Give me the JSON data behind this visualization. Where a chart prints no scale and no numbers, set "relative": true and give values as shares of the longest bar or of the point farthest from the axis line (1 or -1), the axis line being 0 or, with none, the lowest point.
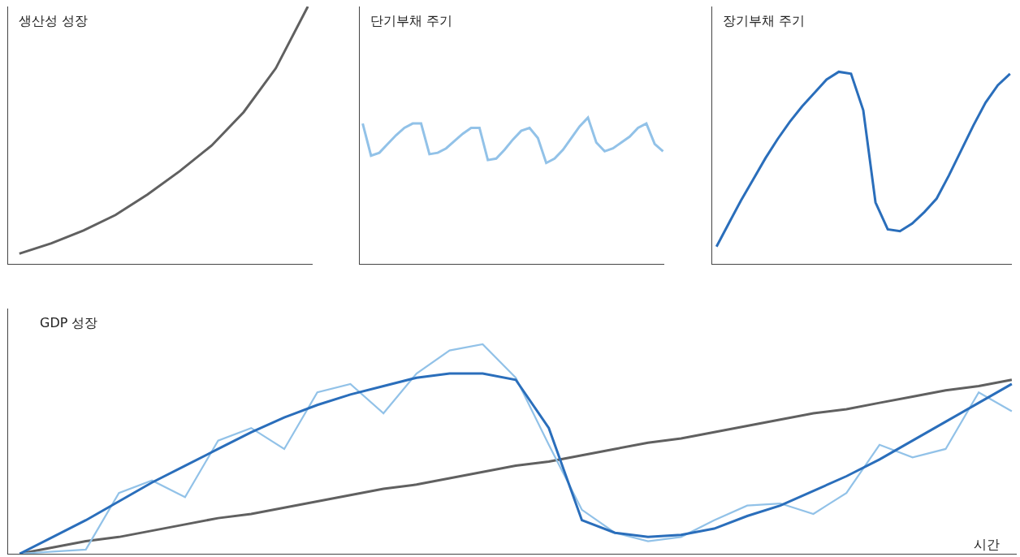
{
  "chart_data": [
    {
      "type": "line",
      "title": "생산성 성장",
      "relative": true,
      "tick_labels": false,
      "grid": false,
      "categories": [
        null,
        null,
        null,
        null,
        null,
        null,
        null,
        null,
        null,
        null
      ],
      "series": [
        {
          "color": "#606060",
          "values": [
            0.04,
            0.08,
            0.13,
            0.19,
            0.27,
            0.36,
            0.46,
            0.59,
            0.76,
            1.0
          ]
        }
      ]
    },
    {
      "type": "line",
      "title": "단기부채 주기",
      "relative": true,
      "tick_labels": false,
      "grid": false,
      "categories": [
        null,
        null,
        null,
        null,
        null,
        null,
        null,
        null,
        null,
        null,
        null,
        null,
        null,
        null,
        null,
        null,
        null,
        null,
        null,
        null,
        null,
        null,
        null,
        null,
        null,
        null,
        null,
        null,
        null,
        null,
        null,
        null,
        null,
        null,
        null,
        null,
        null
      ],
      "series": [
        {
          "color": "#92c2e8",
          "values": [
            0.96,
            0.74,
            0.76,
            0.82,
            0.88,
            0.93,
            0.96,
            0.96,
            0.75,
            0.76,
            0.79,
            0.84,
            0.89,
            0.93,
            0.93,
            0.71,
            0.72,
            0.78,
            0.85,
            0.91,
            0.93,
            0.86,
            0.69,
            0.72,
            0.78,
            0.86,
            0.94,
            1.0,
            0.83,
            0.77,
            0.79,
            0.83,
            0.87,
            0.93,
            0.96,
            0.82,
            0.77
          ]
        }
      ]
    },
    {
      "type": "line",
      "title": "장기부채 주기",
      "relative": true,
      "tick_labels": false,
      "grid": false,
      "categories": [
        null,
        null,
        null,
        null,
        null,
        null,
        null,
        null,
        null,
        null,
        null,
        null,
        null,
        null,
        null,
        null,
        null,
        null,
        null,
        null,
        null,
        null,
        null,
        null,
        null
      ],
      "series": [
        {
          "color": "#2a6ebb",
          "values": [
            0.09,
            0.21,
            0.33,
            0.44,
            0.55,
            0.65,
            0.74,
            0.82,
            0.89,
            0.96,
            1.0,
            0.99,
            0.8,
            0.32,
            0.18,
            0.17,
            0.21,
            0.27,
            0.34,
            0.46,
            0.59,
            0.72,
            0.84,
            0.93,
            0.99
          ]
        }
      ]
    },
    {
      "type": "line",
      "title": "GDP 성장",
      "xlabel": "시간",
      "relative": true,
      "tick_labels": false,
      "grid": false,
      "categories": [
        null,
        null,
        null,
        null,
        null,
        null,
        null,
        null,
        null,
        null,
        null,
        null,
        null,
        null,
        null,
        null,
        null,
        null,
        null,
        null,
        null,
        null,
        null,
        null,
        null,
        null,
        null,
        null,
        null,
        null,
        null
      ],
      "series": [
        {
          "color": "#606060",
          "values": [
            0,
            0.03,
            0.06,
            0.08,
            0.11,
            0.14,
            0.17,
            0.19,
            0.22,
            0.25,
            0.28,
            0.31,
            0.33,
            0.36,
            0.39,
            0.42,
            0.44,
            0.47,
            0.5,
            0.53,
            0.55,
            0.58,
            0.61,
            0.64,
            0.67,
            0.69,
            0.72,
            0.75,
            0.78,
            0.8,
            0.83
          ]
        },
        {
          "color": "#92c2e8",
          "values": [
            0,
            0.01,
            0.02,
            0.29,
            0.35,
            0.27,
            0.54,
            0.6,
            0.5,
            0.77,
            0.81,
            0.67,
            0.86,
            0.97,
            1.0,
            0.84,
            0.52,
            0.21,
            0.1,
            0.06,
            0.08,
            0.16,
            0.23,
            0.24,
            0.19,
            0.29,
            0.52,
            0.46,
            0.5,
            0.77,
            0.68
          ]
        },
        {
          "color": "#2a6ebb",
          "values": [
            0,
            0.08,
            0.16,
            0.25,
            0.34,
            0.42,
            0.5,
            0.58,
            0.65,
            0.71,
            0.76,
            0.8,
            0.84,
            0.86,
            0.86,
            0.83,
            0.6,
            0.16,
            0.1,
            0.08,
            0.09,
            0.12,
            0.18,
            0.23,
            0.3,
            0.37,
            0.45,
            0.54,
            0.63,
            0.72,
            0.81
          ]
        }
      ]
    }
  ]
}
